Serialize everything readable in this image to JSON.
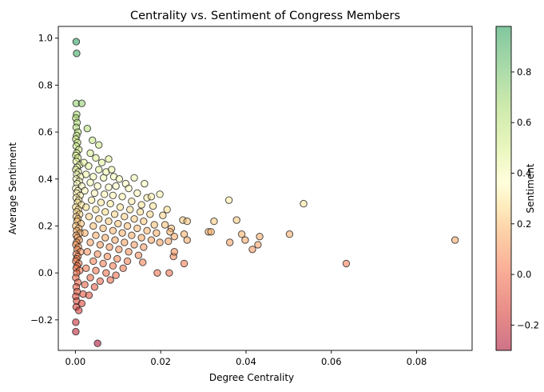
{
  "chart_data": {
    "type": "scatter",
    "title": "Centrality vs. Sentiment of Congress Members",
    "xlabel": "Degree Centrality",
    "ylabel": "Average Sentiment",
    "xlim": [
      -0.004,
      0.093
    ],
    "ylim": [
      -0.33,
      1.05
    ],
    "xticks": [
      0.0,
      0.02,
      0.04,
      0.06,
      0.08
    ],
    "xtick_labels": [
      "0.00",
      "0.02",
      "0.04",
      "0.06",
      "0.08"
    ],
    "yticks": [
      -0.2,
      0.0,
      0.2,
      0.4,
      0.6,
      0.8,
      1.0
    ],
    "ytick_labels": [
      "−0.2",
      "0.0",
      "0.2",
      "0.4",
      "0.6",
      "0.8",
      "1.0"
    ],
    "grid": false,
    "colorbar": {
      "label": "Sentiment",
      "range": [
        -0.3,
        0.98
      ],
      "colormap": "RdYlGn",
      "ticks": [
        -0.2,
        0.0,
        0.2,
        0.4,
        0.6,
        0.8
      ],
      "tick_labels": [
        "−0.2",
        "0.0",
        "0.2",
        "0.4",
        "0.6",
        "0.8"
      ]
    },
    "points": [
      [
        0.0002,
        0.985
      ],
      [
        0.0003,
        0.935
      ],
      [
        0.0002,
        0.722
      ],
      [
        0.0015,
        0.722
      ],
      [
        0.0003,
        0.675
      ],
      [
        0.0001,
        0.66
      ],
      [
        0.0004,
        0.64
      ],
      [
        0.0002,
        0.62
      ],
      [
        0.0006,
        0.6
      ],
      [
        0.0003,
        0.585
      ],
      [
        0.0001,
        0.57
      ],
      [
        0.0005,
        0.555
      ],
      [
        0.0002,
        0.54
      ],
      [
        0.0008,
        0.525
      ],
      [
        0.0003,
        0.51
      ],
      [
        0.0001,
        0.5
      ],
      [
        0.0006,
        0.49
      ],
      [
        0.0002,
        0.475
      ],
      [
        0.001,
        0.46
      ],
      [
        0.0004,
        0.45
      ],
      [
        0.0001,
        0.44
      ],
      [
        0.0007,
        0.43
      ],
      [
        0.0003,
        0.42
      ],
      [
        0.0012,
        0.41
      ],
      [
        0.0002,
        0.4
      ],
      [
        0.0009,
        0.39
      ],
      [
        0.0004,
        0.38
      ],
      [
        0.0015,
        0.37
      ],
      [
        0.0001,
        0.36
      ],
      [
        0.0006,
        0.35
      ],
      [
        0.0003,
        0.34
      ],
      [
        0.0011,
        0.33
      ],
      [
        0.0002,
        0.32
      ],
      [
        0.0008,
        0.31
      ],
      [
        0.0005,
        0.3
      ],
      [
        0.0014,
        0.29
      ],
      [
        0.0001,
        0.28
      ],
      [
        0.0007,
        0.27
      ],
      [
        0.0003,
        0.26
      ],
      [
        0.001,
        0.25
      ],
      [
        0.0002,
        0.24
      ],
      [
        0.0006,
        0.23
      ],
      [
        0.0004,
        0.22
      ],
      [
        0.0013,
        0.21
      ],
      [
        0.0001,
        0.2
      ],
      [
        0.0008,
        0.19
      ],
      [
        0.0003,
        0.18
      ],
      [
        0.0011,
        0.17
      ],
      [
        0.0002,
        0.16
      ],
      [
        0.0005,
        0.15
      ],
      [
        0.0009,
        0.14
      ],
      [
        0.0003,
        0.13
      ],
      [
        0.0001,
        0.12
      ],
      [
        0.0007,
        0.11
      ],
      [
        0.0004,
        0.1
      ],
      [
        0.0012,
        0.09
      ],
      [
        0.0002,
        0.08
      ],
      [
        0.0006,
        0.07
      ],
      [
        0.0003,
        0.06
      ],
      [
        0.0001,
        0.05
      ],
      [
        0.0008,
        0.04
      ],
      [
        0.0004,
        0.03
      ],
      [
        0.0002,
        0.02
      ],
      [
        0.001,
        0.01
      ],
      [
        0.0003,
        0.0
      ],
      [
        0.0001,
        -0.02
      ],
      [
        0.0006,
        -0.04
      ],
      [
        0.0002,
        -0.06
      ],
      [
        0.0004,
        -0.08
      ],
      [
        0.0001,
        -0.1
      ],
      [
        0.0003,
        -0.12
      ],
      [
        0.0002,
        -0.145
      ],
      [
        0.0008,
        -0.16
      ],
      [
        0.0001,
        -0.21
      ],
      [
        0.0001,
        -0.25
      ],
      [
        0.0052,
        -0.3
      ],
      [
        0.0028,
        0.615
      ],
      [
        0.004,
        0.565
      ],
      [
        0.0055,
        0.545
      ],
      [
        0.0035,
        0.51
      ],
      [
        0.0048,
        0.49
      ],
      [
        0.002,
        0.47
      ],
      [
        0.0062,
        0.47
      ],
      [
        0.0078,
        0.485
      ],
      [
        0.0031,
        0.455
      ],
      [
        0.0055,
        0.44
      ],
      [
        0.0072,
        0.43
      ],
      [
        0.0085,
        0.44
      ],
      [
        0.0025,
        0.42
      ],
      [
        0.0042,
        0.41
      ],
      [
        0.0066,
        0.405
      ],
      [
        0.009,
        0.41
      ],
      [
        0.0103,
        0.4
      ],
      [
        0.0138,
        0.405
      ],
      [
        0.0118,
        0.38
      ],
      [
        0.0162,
        0.38
      ],
      [
        0.0035,
        0.385
      ],
      [
        0.0052,
        0.37
      ],
      [
        0.0078,
        0.365
      ],
      [
        0.0095,
        0.37
      ],
      [
        0.0125,
        0.36
      ],
      [
        0.0145,
        0.34
      ],
      [
        0.0168,
        0.32
      ],
      [
        0.0178,
        0.325
      ],
      [
        0.0022,
        0.35
      ],
      [
        0.0045,
        0.34
      ],
      [
        0.0068,
        0.335
      ],
      [
        0.0088,
        0.33
      ],
      [
        0.011,
        0.325
      ],
      [
        0.0132,
        0.305
      ],
      [
        0.0155,
        0.29
      ],
      [
        0.0198,
        0.335
      ],
      [
        0.0182,
        0.285
      ],
      [
        0.0038,
        0.31
      ],
      [
        0.006,
        0.3
      ],
      [
        0.0082,
        0.295
      ],
      [
        0.0105,
        0.28
      ],
      [
        0.0128,
        0.27
      ],
      [
        0.0152,
        0.26
      ],
      [
        0.0175,
        0.25
      ],
      [
        0.0205,
        0.245
      ],
      [
        0.0215,
        0.27
      ],
      [
        0.0025,
        0.28
      ],
      [
        0.0048,
        0.27
      ],
      [
        0.007,
        0.26
      ],
      [
        0.0092,
        0.25
      ],
      [
        0.0115,
        0.24
      ],
      [
        0.0138,
        0.23
      ],
      [
        0.016,
        0.22
      ],
      [
        0.0185,
        0.205
      ],
      [
        0.021,
        0.205
      ],
      [
        0.0225,
        0.19
      ],
      [
        0.0252,
        0.225
      ],
      [
        0.0262,
        0.22
      ],
      [
        0.0032,
        0.24
      ],
      [
        0.0055,
        0.23
      ],
      [
        0.0078,
        0.22
      ],
      [
        0.01,
        0.21
      ],
      [
        0.0122,
        0.2
      ],
      [
        0.0145,
        0.19
      ],
      [
        0.0168,
        0.18
      ],
      [
        0.019,
        0.17
      ],
      [
        0.0222,
        0.175
      ],
      [
        0.0232,
        0.155
      ],
      [
        0.0255,
        0.165
      ],
      [
        0.0218,
        0.135
      ],
      [
        0.0198,
        0.13
      ],
      [
        0.0042,
        0.2
      ],
      [
        0.0065,
        0.19
      ],
      [
        0.0088,
        0.18
      ],
      [
        0.011,
        0.17
      ],
      [
        0.0132,
        0.16
      ],
      [
        0.0155,
        0.15
      ],
      [
        0.0178,
        0.14
      ],
      [
        0.0262,
        0.14
      ],
      [
        0.0022,
        0.17
      ],
      [
        0.0048,
        0.16
      ],
      [
        0.007,
        0.15
      ],
      [
        0.0093,
        0.14
      ],
      [
        0.0115,
        0.13
      ],
      [
        0.0138,
        0.12
      ],
      [
        0.016,
        0.11
      ],
      [
        0.0035,
        0.13
      ],
      [
        0.0058,
        0.12
      ],
      [
        0.008,
        0.11
      ],
      [
        0.0102,
        0.1
      ],
      [
        0.0125,
        0.09
      ],
      [
        0.0148,
        0.075
      ],
      [
        0.0028,
        0.09
      ],
      [
        0.0052,
        0.08
      ],
      [
        0.0075,
        0.07
      ],
      [
        0.0098,
        0.06
      ],
      [
        0.0122,
        0.05
      ],
      [
        0.0158,
        0.045
      ],
      [
        0.0042,
        0.05
      ],
      [
        0.0065,
        0.04
      ],
      [
        0.0088,
        0.03
      ],
      [
        0.0112,
        0.02
      ],
      [
        0.0025,
        0.02
      ],
      [
        0.0048,
        0.01
      ],
      [
        0.0072,
        0.0
      ],
      [
        0.0095,
        -0.01
      ],
      [
        0.0035,
        -0.02
      ],
      [
        0.0058,
        -0.035
      ],
      [
        0.0082,
        -0.03
      ],
      [
        0.0022,
        -0.05
      ],
      [
        0.0045,
        -0.06
      ],
      [
        0.0018,
        -0.09
      ],
      [
        0.0032,
        -0.095
      ],
      [
        0.0015,
        -0.13
      ],
      [
        0.0192,
        0.0
      ],
      [
        0.022,
        0.0
      ],
      [
        0.023,
        0.07
      ],
      [
        0.0232,
        0.09
      ],
      [
        0.0255,
        0.04
      ],
      [
        0.0312,
        0.175
      ],
      [
        0.0318,
        0.175
      ],
      [
        0.0325,
        0.22
      ],
      [
        0.036,
        0.31
      ],
      [
        0.0362,
        0.13
      ],
      [
        0.0378,
        0.225
      ],
      [
        0.039,
        0.165
      ],
      [
        0.0398,
        0.14
      ],
      [
        0.0415,
        0.1
      ],
      [
        0.0428,
        0.12
      ],
      [
        0.0432,
        0.155
      ],
      [
        0.0502,
        0.165
      ],
      [
        0.0535,
        0.295
      ],
      [
        0.0635,
        0.04
      ],
      [
        0.089,
        0.14
      ]
    ]
  }
}
